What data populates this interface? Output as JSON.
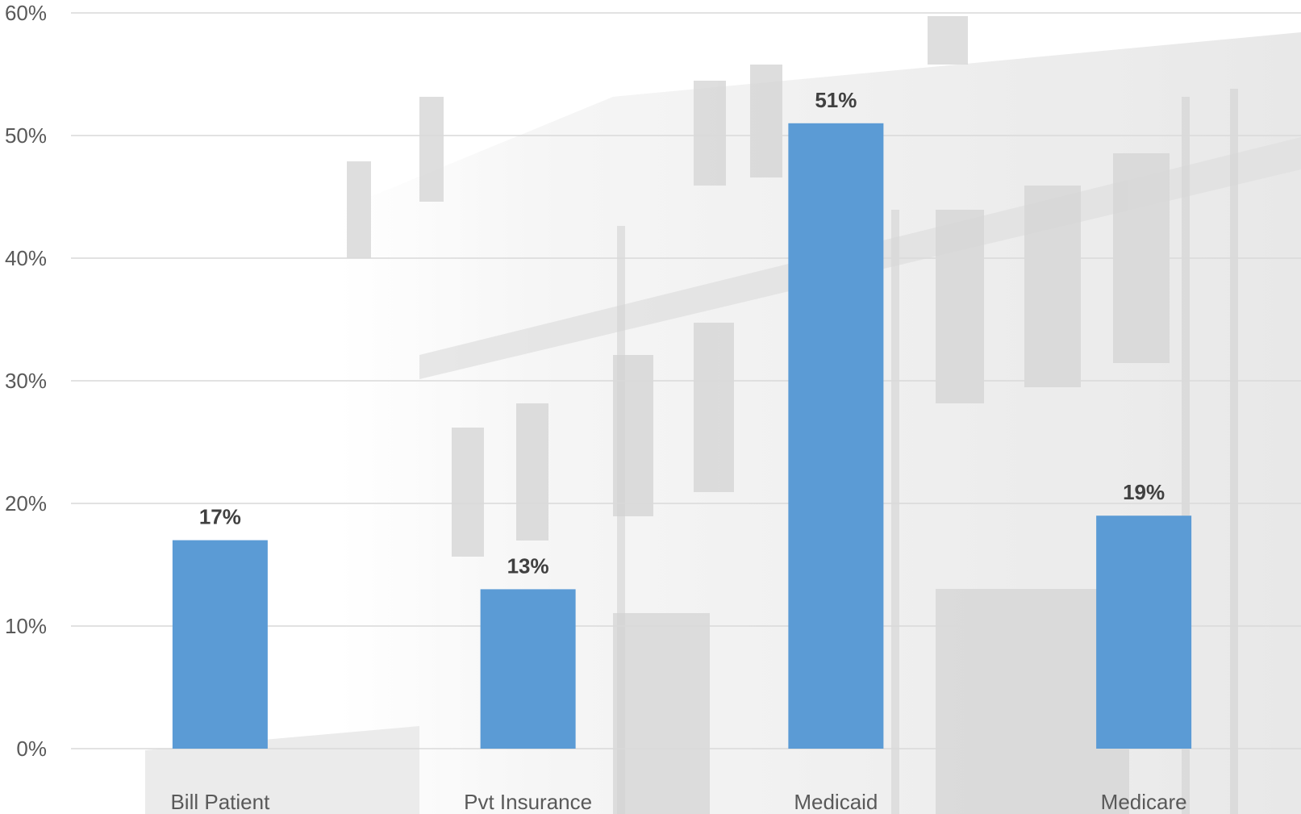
{
  "chart_data": {
    "type": "bar",
    "title": "",
    "xlabel": "",
    "ylabel": "",
    "categories": [
      "Bill Patient",
      "Pvt Insurance",
      "Medicaid",
      "Medicare"
    ],
    "values": [
      17,
      13,
      51,
      19
    ],
    "data_labels": [
      "17%",
      "13%",
      "51%",
      "19%"
    ],
    "ylim": [
      0,
      60
    ],
    "yticks": [
      0,
      10,
      20,
      30,
      40,
      50,
      60
    ],
    "ytick_labels": [
      "0%",
      "10%",
      "20%",
      "30%",
      "40%",
      "50%",
      "60%"
    ],
    "grid": true,
    "legend": "none",
    "bar_color": "#5b9bd5",
    "gridline_color": "#d9d9d9",
    "background": "faded grayscale photo of a civic center building facade"
  }
}
